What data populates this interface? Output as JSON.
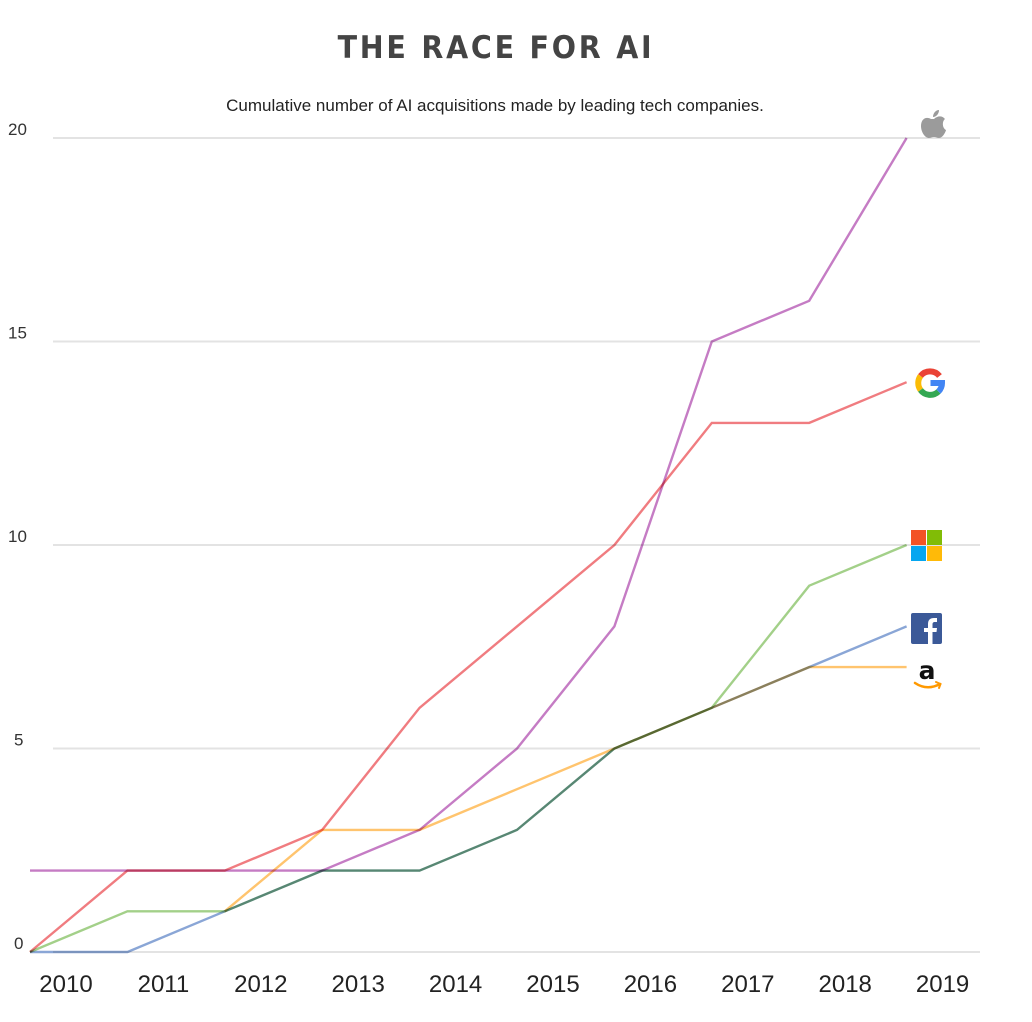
{
  "chart_data": {
    "type": "line",
    "title": "THE RACE FOR AI",
    "subtitle": "Cumulative number of AI acquisitions made by leading tech companies.",
    "xlabel": "",
    "ylabel": "",
    "categories": [
      "2010",
      "2011",
      "2012",
      "2013",
      "2014",
      "2015",
      "2016",
      "2017",
      "2018",
      "2019"
    ],
    "yticks": [
      "0",
      "5",
      "10",
      "15",
      "20"
    ],
    "ylim": [
      0,
      20
    ],
    "grid": true,
    "legend": "logos at line ends (right)",
    "series": [
      {
        "name": "Apple",
        "icon": "apple-logo-icon",
        "color": "#c57cc4",
        "values": [
          2,
          2,
          2,
          2,
          3,
          5,
          8,
          15,
          16,
          20
        ]
      },
      {
        "name": "Google",
        "icon": "google-logo-icon",
        "color": "#f07c80",
        "values": [
          0,
          2,
          2,
          3,
          6,
          8,
          10,
          13,
          13,
          14
        ]
      },
      {
        "name": "Amazon",
        "icon": "amazon-logo-icon",
        "color": "#ffc46e",
        "values": [
          null,
          null,
          1,
          3,
          3,
          4,
          5,
          6,
          7,
          7
        ]
      },
      {
        "name": "Microsoft",
        "icon": "microsoft-logo-icon",
        "color": "#a3d089",
        "values": [
          0,
          1,
          1,
          2,
          2,
          3,
          5,
          6,
          9,
          10
        ]
      },
      {
        "name": "Facebook",
        "icon": "facebook-logo-icon",
        "color": "#8aa6d6",
        "values": [
          0,
          0,
          1,
          2,
          2,
          3,
          5,
          6,
          7,
          8
        ]
      }
    ]
  },
  "colors": {
    "google": [
      "#ea4335",
      "#fbbc05",
      "#34a853",
      "#4285f4"
    ],
    "microsoft": [
      "#f35325",
      "#81bc06",
      "#05a6f0",
      "#ffba08"
    ],
    "facebook": "#3b5998",
    "apple": "#9b9b9b",
    "amazon_smile": "#ff9900"
  }
}
